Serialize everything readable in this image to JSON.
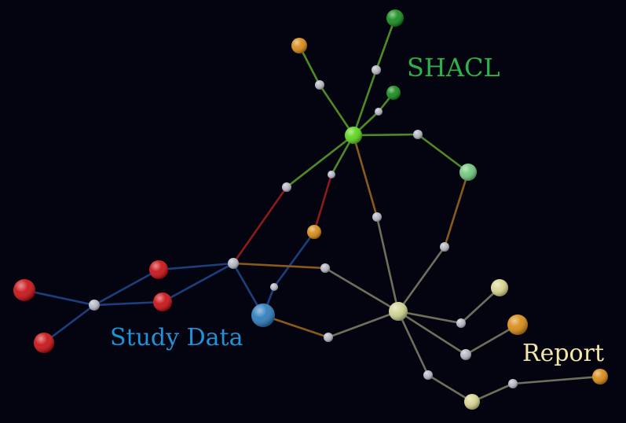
{
  "colors": {
    "background": "#03040f",
    "shacl_label": "#2fb24a",
    "study_label": "#1f93d8",
    "report_label": "#f4e6a6",
    "edge_green": "#4e8a28",
    "edge_blue": "#1c3f7c",
    "edge_red": "#8c1a1a",
    "edge_orange": "#8a5a1c",
    "edge_gray": "#6f6f5c",
    "node_gray": "#b7b7c4",
    "node_red": "#c80d12",
    "node_orange": "#d88a14",
    "node_darkgreen": "#138a18",
    "node_lime": "#5ad41a",
    "node_lightgreen": "#6ec87e",
    "node_blue": "#2a7abb",
    "node_khaki": "#d8d48e",
    "node_paleyellow": "#cfd390"
  },
  "labels": {
    "shacl": "SHACL",
    "study_data": "Study Data",
    "report": "Report"
  }
}
